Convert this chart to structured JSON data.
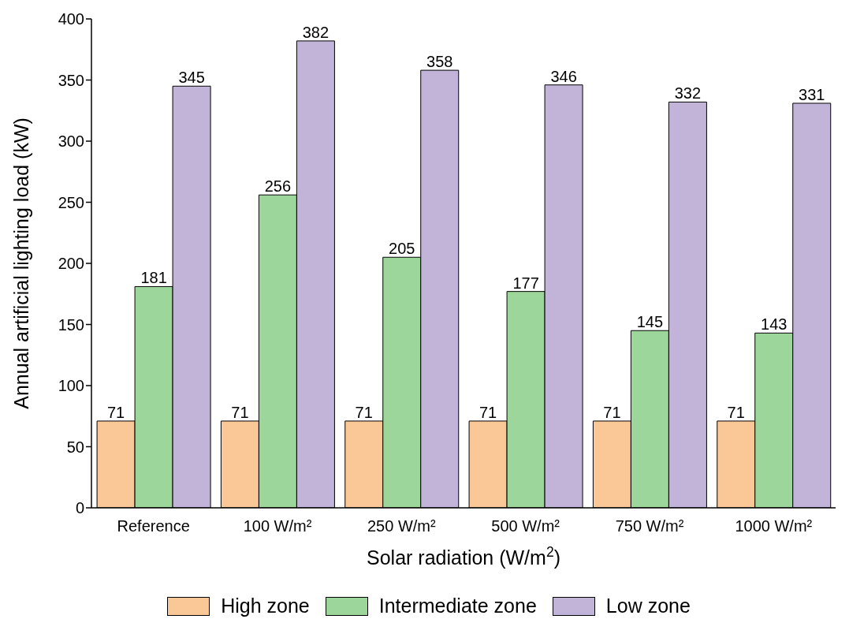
{
  "chart_data": {
    "type": "bar",
    "xlabel": "Solar radiation (W/m$^{2}$)",
    "ylabel": "Annual artificial lighting load (kW)",
    "categories": [
      "Reference",
      "100 W/m²",
      "250 W/m²",
      "500 W/m²",
      "750 W/m²",
      "1000 W/m²"
    ],
    "series": [
      {
        "name": "High zone",
        "color": "#f9c896",
        "values": [
          71,
          71,
          71,
          71,
          71,
          71
        ]
      },
      {
        "name": "Intermediate zone",
        "color": "#9dd69b",
        "values": [
          181,
          256,
          205,
          177,
          145,
          143
        ]
      },
      {
        "name": "Low zone",
        "color": "#c2b3d8",
        "values": [
          345,
          382,
          358,
          346,
          332,
          331
        ]
      }
    ],
    "ylim": [
      0,
      400
    ],
    "yticks": [
      0,
      50,
      100,
      150,
      200,
      250,
      300,
      350,
      400
    ],
    "grid": false,
    "legend": "bottom",
    "data_labels": true
  }
}
